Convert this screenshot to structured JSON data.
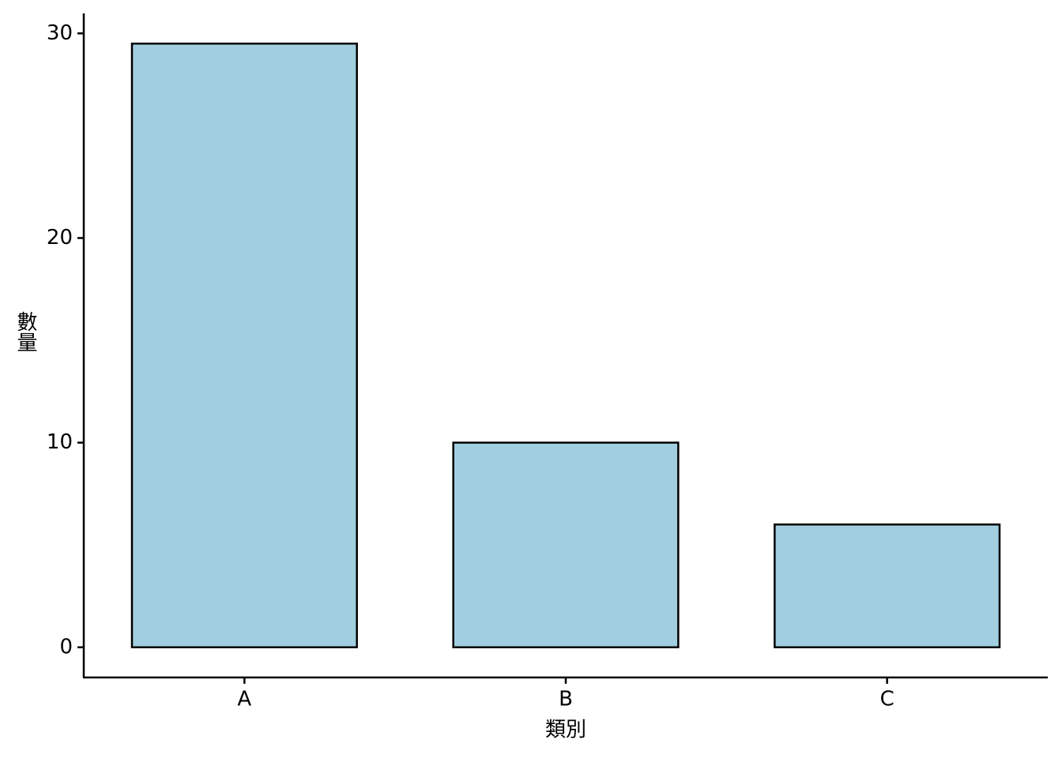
{
  "chart_data": {
    "type": "bar",
    "x_label": "類別",
    "y_label": "數量",
    "categories": [
      "A",
      "B",
      "C"
    ],
    "values": [
      29.5,
      10,
      6
    ],
    "color": "#a1cfe0",
    "ylim": [
      -1.475,
      30.975
    ],
    "yticks": [
      0,
      10,
      20,
      30
    ]
  }
}
